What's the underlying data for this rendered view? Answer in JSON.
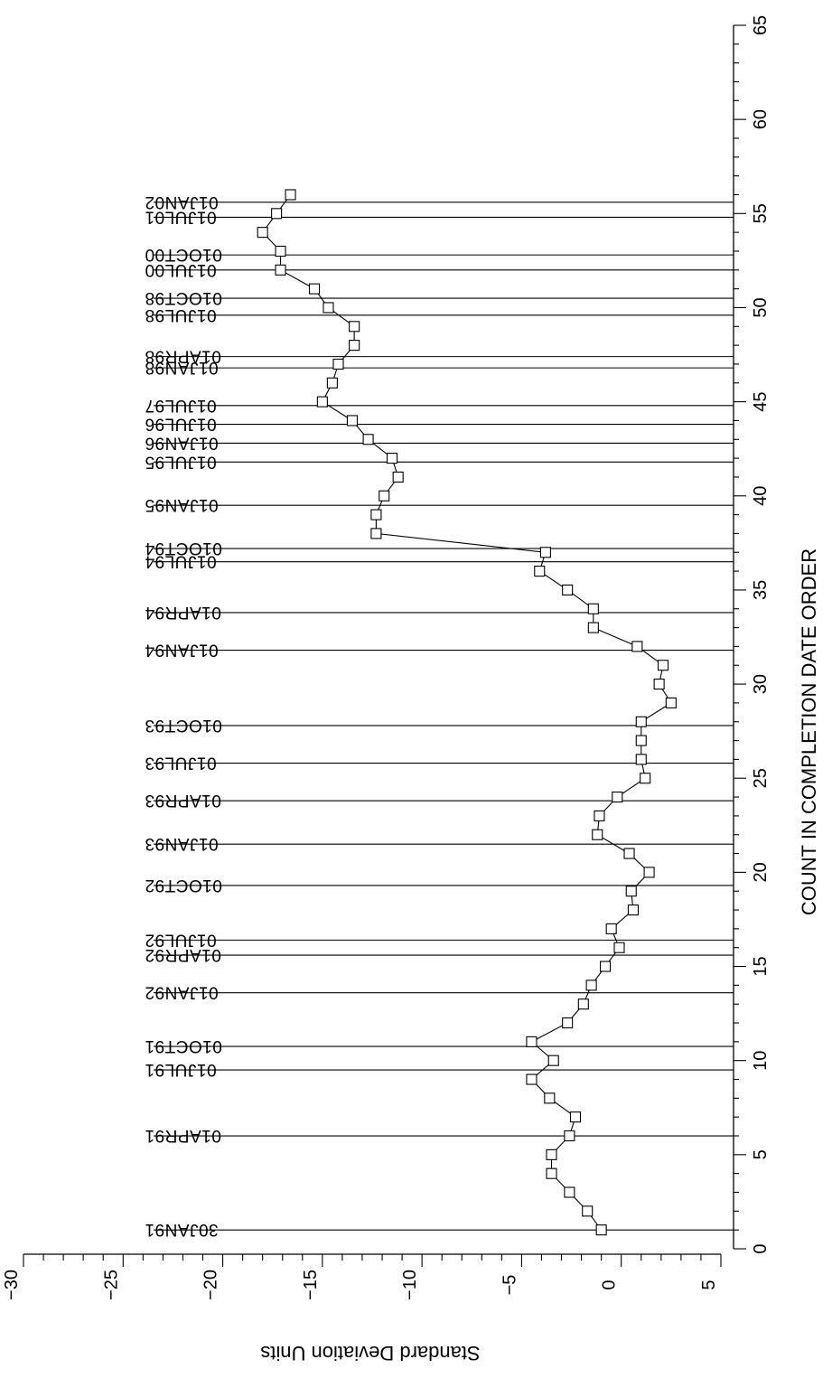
{
  "chart_data": {
    "type": "scatter",
    "orientation": "rotated-90",
    "title": "",
    "xlabel": "COUNT IN COMPLETION DATE ORDER",
    "ylabel": "Standard Deviation Units",
    "xlim": [
      0,
      65
    ],
    "ylim": [
      -30,
      5
    ],
    "x_ticks": [
      0,
      5,
      10,
      15,
      20,
      25,
      30,
      35,
      40,
      45,
      50,
      55,
      60,
      65
    ],
    "x_tick_labels": [
      "0",
      "5",
      "10",
      "15",
      "20",
      "25",
      "30",
      "35",
      "40",
      "45",
      "50",
      "55",
      "60",
      "65"
    ],
    "y_ticks": [
      -30,
      -25,
      -20,
      -15,
      -10,
      -5,
      0,
      5
    ],
    "y_tick_labels": [
      "−30",
      "−25",
      "−20",
      "−15",
      "−10",
      "−5",
      "0",
      "5"
    ],
    "grid": false,
    "series": [
      {
        "marker": "square",
        "connected": true,
        "x": [
          1,
          2,
          3,
          4,
          5,
          6,
          7,
          8,
          9,
          10,
          11,
          12,
          13,
          14,
          15,
          16,
          17,
          18,
          19,
          20,
          21,
          22,
          23,
          24,
          25,
          26,
          27,
          28,
          29,
          30,
          31,
          32,
          33,
          34,
          35,
          36,
          37,
          38,
          39,
          40,
          41,
          42,
          43,
          44,
          45,
          46,
          47,
          48,
          49,
          50,
          51,
          52,
          53,
          54,
          55,
          56
        ],
        "y": [
          -1.0,
          -1.7,
          -2.6,
          -3.5,
          -3.5,
          -2.6,
          -2.3,
          -3.6,
          -4.5,
          -3.4,
          -4.5,
          -2.7,
          -1.9,
          -1.5,
          -0.8,
          -0.1,
          -0.5,
          0.6,
          0.5,
          1.4,
          0.4,
          -1.2,
          -1.1,
          -0.2,
          1.2,
          1.0,
          1.0,
          1.0,
          2.5,
          1.9,
          2.1,
          0.8,
          -1.4,
          -1.4,
          -2.7,
          -4.1,
          -3.8,
          -12.3,
          -12.3,
          -11.9,
          -11.2,
          -11.5,
          -12.7,
          -13.5,
          -15.0,
          -14.5,
          -14.2,
          -13.4,
          -13.4,
          -14.7,
          -15.4,
          -17.1,
          -17.1,
          -18.0,
          -17.3,
          -16.6
        ]
      }
    ],
    "reference_lines": [
      {
        "x": 1,
        "label": "30JAN91"
      },
      {
        "x": 6,
        "label": "01APR91"
      },
      {
        "x": 9.5,
        "label": "01JUL91"
      },
      {
        "x": 10.75,
        "label": "01OCT91"
      },
      {
        "x": 13.6,
        "label": "01JAN92"
      },
      {
        "x": 15.6,
        "label": "01APR92"
      },
      {
        "x": 16.4,
        "label": "01JUL92"
      },
      {
        "x": 19.3,
        "label": "01OCT92"
      },
      {
        "x": 21.5,
        "label": "01JAN93"
      },
      {
        "x": 23.8,
        "label": "01APR93"
      },
      {
        "x": 25.8,
        "label": "01JUL93"
      },
      {
        "x": 27.8,
        "label": "01OCT93"
      },
      {
        "x": 31.8,
        "label": "01JAN94"
      },
      {
        "x": 33.8,
        "label": "01APR94"
      },
      {
        "x": 36.5,
        "label": "01JUL94"
      },
      {
        "x": 37.2,
        "label": "01OCT94"
      },
      {
        "x": 39.5,
        "label": "01JAN95"
      },
      {
        "x": 41.8,
        "label": "01JUL95"
      },
      {
        "x": 42.8,
        "label": "01JAN96"
      },
      {
        "x": 43.8,
        "label": "01JUL96"
      },
      {
        "x": 44.8,
        "label": "01JUL97"
      },
      {
        "x": 46.8,
        "label": "01JAN98"
      },
      {
        "x": 47.4,
        "label": "01APR98"
      },
      {
        "x": 49.6,
        "label": "01JUL98"
      },
      {
        "x": 50.5,
        "label": "01OCT98"
      },
      {
        "x": 52.0,
        "label": "01JUL00"
      },
      {
        "x": 52.8,
        "label": "01OCT00"
      },
      {
        "x": 54.8,
        "label": "01JUL01"
      },
      {
        "x": 55.6,
        "label": "01JAN02"
      }
    ]
  }
}
